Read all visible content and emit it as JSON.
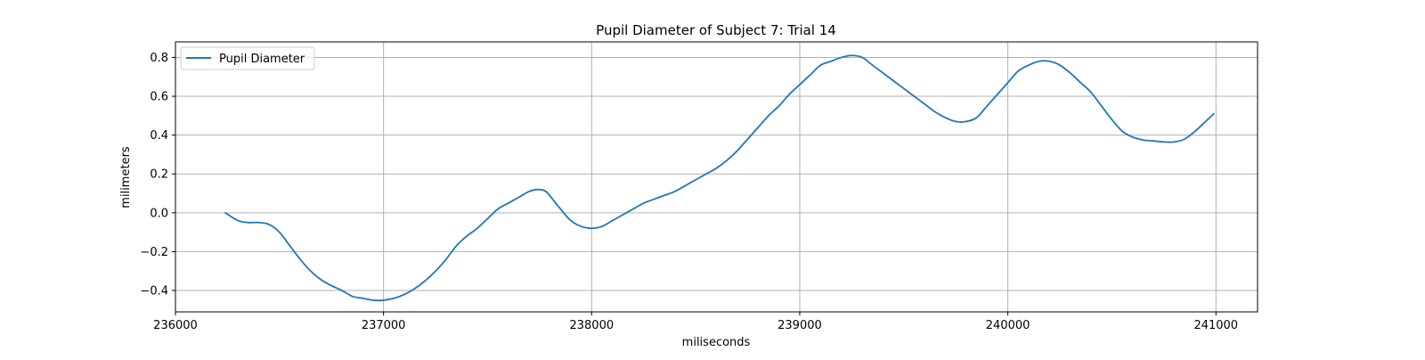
{
  "chart_data": {
    "type": "line",
    "title": "Pupil Diameter of Subject 7: Trial 14",
    "xlabel": "miliseconds",
    "ylabel": "milimeters",
    "xlim": [
      236000,
      241200
    ],
    "ylim": [
      -0.51,
      0.88
    ],
    "x_ticks": [
      236000,
      237000,
      238000,
      239000,
      240000,
      241000
    ],
    "x_tick_labels": [
      "236000",
      "237000",
      "238000",
      "239000",
      "240000",
      "241000"
    ],
    "y_ticks": [
      -0.4,
      -0.2,
      0.0,
      0.2,
      0.4,
      0.6,
      0.8
    ],
    "y_tick_labels": [
      "−0.4",
      "−0.2",
      "0.0",
      "0.2",
      "0.4",
      "0.6",
      "0.8"
    ],
    "grid": true,
    "legend_position": "upper-left",
    "series": [
      {
        "name": "Pupil Diameter",
        "color": "#1f77b4",
        "x": [
          236240,
          236300,
          236350,
          236400,
          236450,
          236500,
          236550,
          236600,
          236650,
          236700,
          236750,
          236800,
          236850,
          236900,
          236950,
          237000,
          237050,
          237100,
          237150,
          237200,
          237250,
          237300,
          237350,
          237400,
          237450,
          237500,
          237550,
          237600,
          237650,
          237700,
          237740,
          237780,
          237820,
          237850,
          237900,
          237950,
          238000,
          238050,
          238100,
          238150,
          238200,
          238250,
          238300,
          238350,
          238400,
          238450,
          238500,
          238550,
          238600,
          238650,
          238700,
          238750,
          238800,
          238850,
          238900,
          238950,
          239000,
          239050,
          239100,
          239150,
          239200,
          239250,
          239300,
          239350,
          239400,
          239450,
          239500,
          239550,
          239600,
          239650,
          239700,
          239750,
          239800,
          239850,
          239900,
          239950,
          240000,
          240050,
          240100,
          240150,
          240200,
          240250,
          240300,
          240350,
          240400,
          240450,
          240500,
          240550,
          240600,
          240650,
          240700,
          240750,
          240800,
          240850,
          240900,
          240950,
          240990
        ],
        "y": [
          0.0,
          -0.04,
          -0.05,
          -0.05,
          -0.06,
          -0.1,
          -0.17,
          -0.24,
          -0.3,
          -0.345,
          -0.375,
          -0.4,
          -0.43,
          -0.44,
          -0.45,
          -0.45,
          -0.44,
          -0.42,
          -0.39,
          -0.35,
          -0.3,
          -0.24,
          -0.17,
          -0.12,
          -0.08,
          -0.03,
          0.02,
          0.05,
          0.08,
          0.11,
          0.12,
          0.11,
          0.06,
          0.02,
          -0.04,
          -0.07,
          -0.08,
          -0.07,
          -0.04,
          -0.01,
          0.02,
          0.05,
          0.07,
          0.09,
          0.11,
          0.14,
          0.17,
          0.2,
          0.23,
          0.27,
          0.32,
          0.38,
          0.44,
          0.5,
          0.55,
          0.61,
          0.66,
          0.71,
          0.76,
          0.78,
          0.8,
          0.81,
          0.8,
          0.76,
          0.72,
          0.68,
          0.64,
          0.6,
          0.56,
          0.52,
          0.49,
          0.47,
          0.47,
          0.49,
          0.55,
          0.61,
          0.67,
          0.73,
          0.76,
          0.78,
          0.78,
          0.76,
          0.72,
          0.67,
          0.62,
          0.55,
          0.48,
          0.42,
          0.39,
          0.375,
          0.37,
          0.365,
          0.365,
          0.38,
          0.42,
          0.47,
          0.51
        ]
      }
    ]
  }
}
